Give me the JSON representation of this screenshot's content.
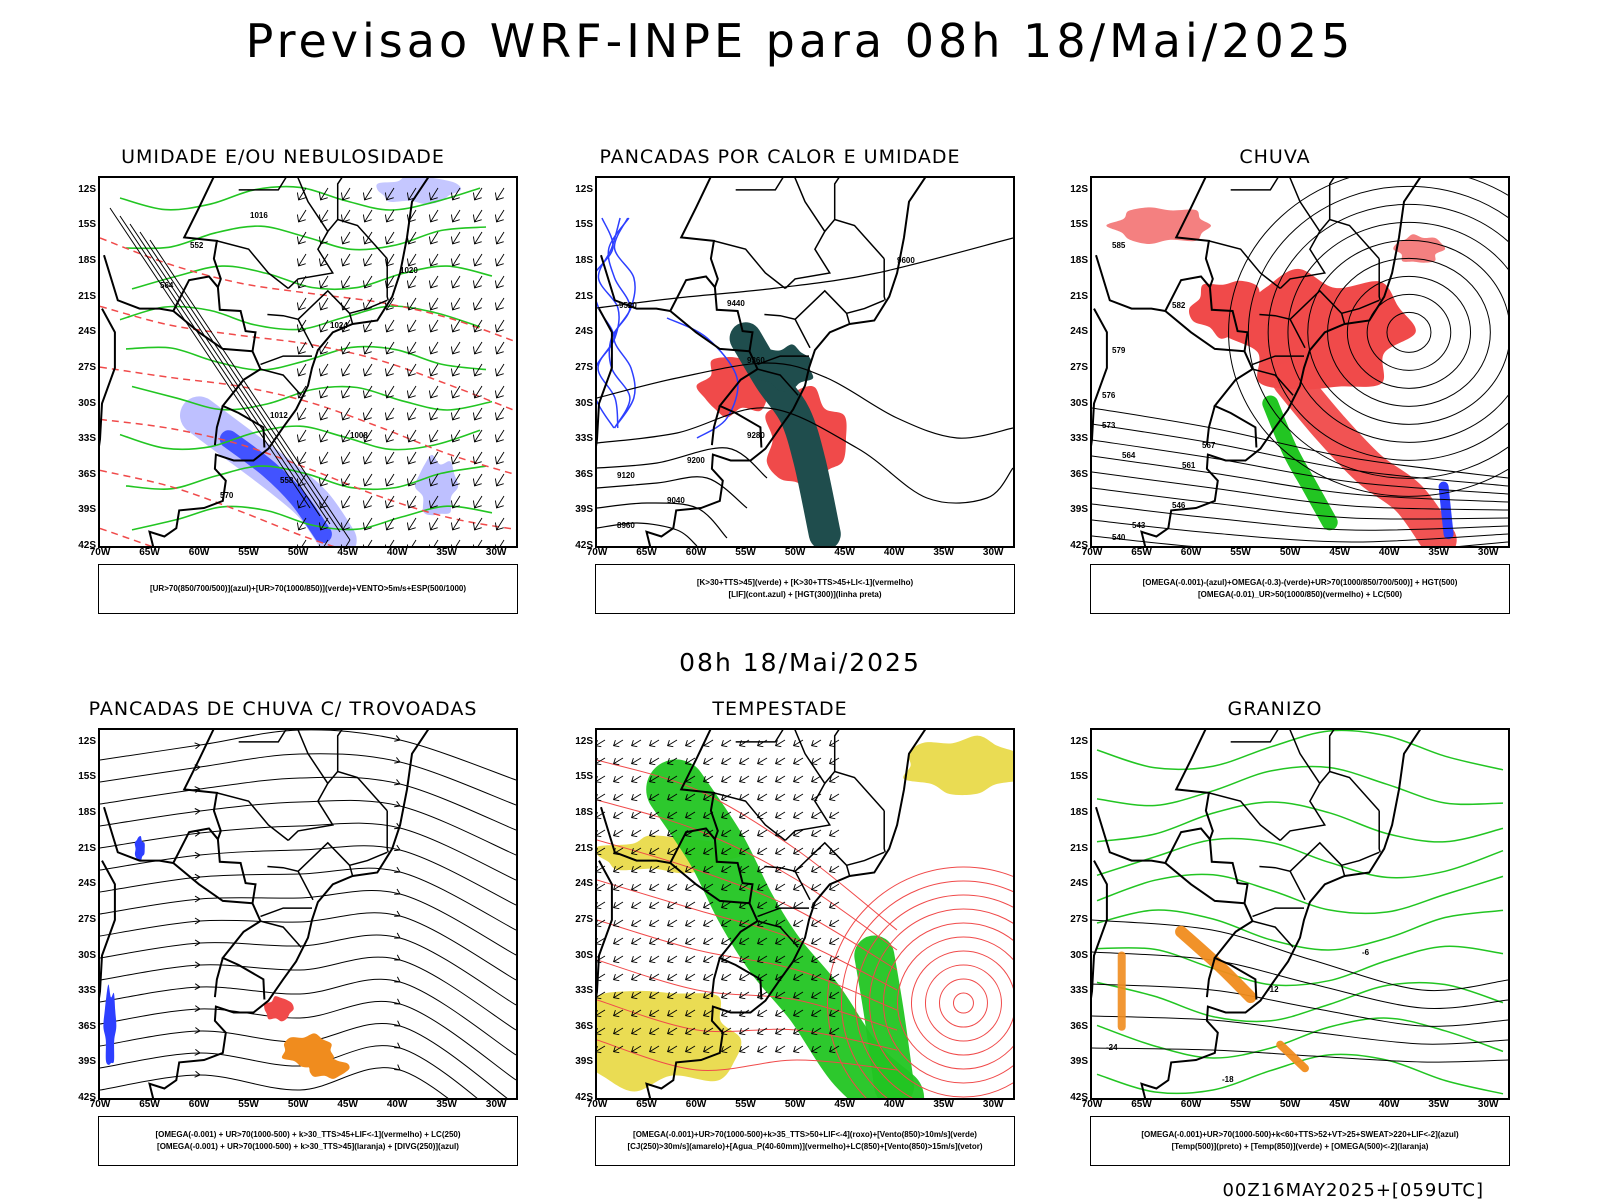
{
  "main_title": "Previsao WRF-INPE  para 08h 18/Mai/2025",
  "mid_title": "08h 18/Mai/2025",
  "footer": "00Z16MAY2025+[059UTC]",
  "axes": {
    "y_ticks": [
      "12S",
      "15S",
      "18S",
      "21S",
      "24S",
      "27S",
      "30S",
      "33S",
      "36S",
      "39S",
      "42S"
    ],
    "x_ticks": [
      "70W",
      "65W",
      "60W",
      "55W",
      "50W",
      "45W",
      "40W",
      "35W",
      "30W"
    ]
  },
  "colors": {
    "red": "#f04a4a",
    "green": "#22c522",
    "blue": "#2d3fff",
    "lightblue": "#b7b9ff",
    "darkteal": "#1f4d4d",
    "yellow": "#e8d840",
    "orange": "#f08c1e",
    "black": "#000000"
  },
  "panels": [
    {
      "title": "UMIDADE E/OU NEBULOSIDADE",
      "legend": [
        "[UR>70(850/700/500)](azul)+[UR>70(1000/850)](verde)+VENTO>5m/s+ESP(500/1000)"
      ],
      "contour_labels": [
        "1016",
        "1020",
        "1024",
        "1012",
        "1008",
        "570",
        "564",
        "558",
        "552"
      ]
    },
    {
      "title": "PANCADAS POR CALOR E UMIDADE",
      "legend": [
        "[K>30+TTS>45](verde) + [K>30+TTS>45+LI<-1](vermelho)",
        "[LIF](cont.azul) + [HGT(300)](linha preta)"
      ],
      "contour_labels": [
        "9600",
        "9520",
        "9440",
        "9360",
        "9280",
        "9200",
        "9120",
        "9040",
        "8960"
      ]
    },
    {
      "title": "CHUVA",
      "legend": [
        "[OMEGA(-0.001)-(azul)+OMEGA(-0.3)-(verde)+UR>70(1000/850/700/500)] + HGT(500)",
        "[OMEGA(-0.01)_UR>50(1000/850)(vermelho) + LC(500)"
      ],
      "contour_labels": [
        "585",
        "582",
        "579",
        "576",
        "573",
        "567",
        "564",
        "561",
        "546",
        "543",
        "540"
      ]
    },
    {
      "title": "PANCADAS DE CHUVA C/ TROVOADAS",
      "legend": [
        "[OMEGA(-0.001) + UR>70(1000-500) + k>30_TTS>45+LIF<-1](vermelho) + LC(250)",
        "[OMEGA(-0.001) + UR>70(1000-500) + k>30_TTS>45](laranja) + [DIVG(250)](azul)"
      ],
      "contour_labels": []
    },
    {
      "title": "TEMPESTADE",
      "legend": [
        "[OMEGA(-0.001)+UR>70(1000-500)+k>35_TTS>50+LIF<-4](roxo)+[Vento(850)>10m/s](verde)",
        "[CJ(250)>30m/s](amarelo)+[Agua_P(40-60mm)](vermelho)+LC(850)+[Vento(850)>15m/s](vetor)"
      ],
      "contour_labels": []
    },
    {
      "title": "GRANIZO",
      "legend": [
        "[OMEGA(-0.001)+UR>70(1000-500)+k<60+TTS>52+VT>25+SWEAT>220+LIF<-2](azul)",
        "[Temp(500)](preto) + [Temp(850)](verde) + [OMEGA(500)<-2](laranja)"
      ],
      "contour_labels": [
        "-12",
        "-6",
        "-24",
        "-18"
      ]
    }
  ]
}
